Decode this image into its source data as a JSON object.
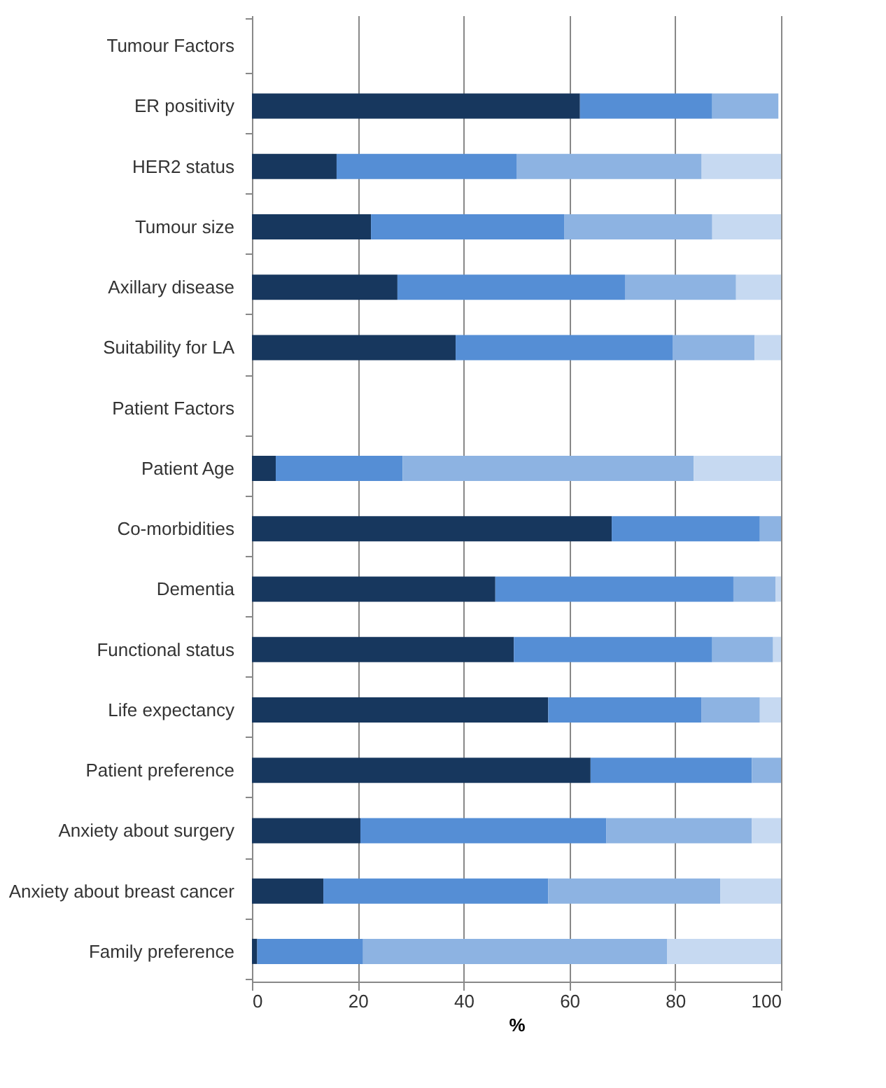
{
  "chart_data": {
    "type": "bar",
    "orientation": "horizontal",
    "stacked": true,
    "categories": [
      "Tumour Factors",
      "ER positivity",
      "HER2 status",
      "Tumour size",
      "Axillary disease",
      "Suitability for LA",
      "Patient Factors",
      "Patient Age",
      "Co-morbidities",
      "Dementia",
      "Functional status",
      "Life expectancy",
      "Patient preference",
      "Anxiety about surgery",
      "Anxiety about breast cancer",
      "Family preference"
    ],
    "series": [
      {
        "color": "#17375e",
        "values": [
          null,
          62,
          16,
          22.5,
          27.5,
          38.5,
          null,
          4.5,
          68,
          46,
          49.5,
          56,
          64,
          20.5,
          13.5,
          1
        ]
      },
      {
        "color": "#558ed5",
        "values": [
          null,
          25,
          34,
          36.5,
          43,
          41,
          null,
          24,
          28,
          45,
          37.5,
          29,
          30.5,
          46.5,
          42.5,
          20
        ]
      },
      {
        "color": "#8db3e2",
        "values": [
          null,
          12.5,
          35,
          28,
          21,
          15.5,
          null,
          55,
          4,
          8,
          11.5,
          11,
          5.5,
          27.5,
          32.5,
          57.5
        ]
      },
      {
        "color": "#c6d9f1",
        "values": [
          null,
          null,
          15,
          13,
          8.5,
          5,
          null,
          16.5,
          null,
          1,
          1.5,
          4,
          null,
          5.5,
          11.5,
          21.5
        ]
      }
    ],
    "xlabel": "%",
    "xlim": [
      0,
      100
    ],
    "xticks": [
      0,
      20,
      40,
      60,
      80,
      100
    ],
    "grid": "x",
    "legend": false
  }
}
